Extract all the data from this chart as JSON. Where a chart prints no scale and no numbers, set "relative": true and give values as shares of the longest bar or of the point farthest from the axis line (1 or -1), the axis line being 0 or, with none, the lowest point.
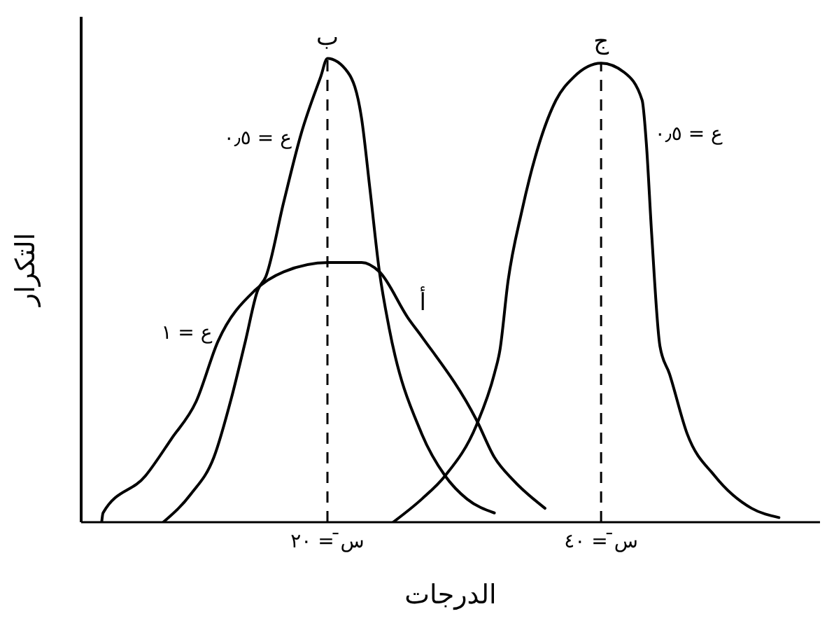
{
  "chart_data": {
    "type": "line",
    "relative": true,
    "xlabel": "الدرجات",
    "ylabel": "التكرار",
    "xlim": [
      2,
      56
    ],
    "xticks": [
      {
        "value": 20,
        "label": "س̄ = ٢٠"
      },
      {
        "value": 40,
        "label": "س̄ = ٤٠"
      }
    ],
    "marker": "none",
    "line_style": "solid",
    "series": [
      {
        "name": "أ",
        "color": "#000000",
        "x": [
          3.5,
          3.6,
          6.7,
          8.6,
          10.4,
          12.0,
          14.7,
          16.8,
          20.1,
          22.5,
          23.8,
          25.9,
          26.9,
          30.9,
          32.2,
          33.6,
          35.9
        ],
        "values": [
          0,
          0.02,
          0.1,
          0.18,
          0.26,
          0.39,
          0.5,
          0.54,
          0.56,
          0.56,
          0.54,
          0.44,
          0.4,
          0.22,
          0.14,
          0.09,
          0.03
        ]
      },
      {
        "name": "ب",
        "color": "#000000",
        "x": [
          8.0,
          10.0,
          11.7,
          13.0,
          14.0,
          14.9,
          15.5,
          16.8,
          18.1,
          19.5,
          20.0,
          21.5,
          22.5,
          23.1,
          23.8,
          24.5,
          26.9,
          28.6,
          30.2,
          32.2
        ],
        "values": [
          0,
          0.06,
          0.14,
          0.27,
          0.39,
          0.5,
          0.53,
          0.69,
          0.84,
          0.96,
          1,
          0.97,
          0.87,
          0.72,
          0.54,
          0.42,
          0.19,
          0.1,
          0.05,
          0.02
        ]
      },
      {
        "name": "ج",
        "color": "#000000",
        "x": [
          24.8,
          26.9,
          28.6,
          30.9,
          32.2,
          32.6,
          33.2,
          34.2,
          36.7,
          38.0,
          40.0,
          41.7,
          43.0,
          43.3,
          43.7,
          44.3,
          45.0,
          46.3,
          48.3,
          51.0,
          53.0
        ],
        "values": [
          0,
          0.05,
          0.1,
          0.21,
          0.32,
          0.37,
          0.52,
          0.67,
          0.91,
          0.96,
          0.99,
          0.97,
          0.91,
          0.82,
          0.62,
          0.38,
          0.32,
          0.19,
          0.1,
          0.03,
          0.01
        ]
      }
    ],
    "annotations": [
      {
        "text": "ع = ٠٫٥",
        "x": 18.0,
        "y": 0.83
      },
      {
        "text": "ع = ١",
        "x": 12.2,
        "y": 0.41
      },
      {
        "text": "ع = ٠٫٥",
        "x": 43.3,
        "y": 0.84
      }
    ],
    "ref_lines": [
      {
        "axis": "x",
        "value": 20,
        "color": "#000000",
        "line_style": "dashed"
      },
      {
        "axis": "x",
        "value": 40,
        "color": "#000000",
        "line_style": "dashed"
      }
    ]
  }
}
